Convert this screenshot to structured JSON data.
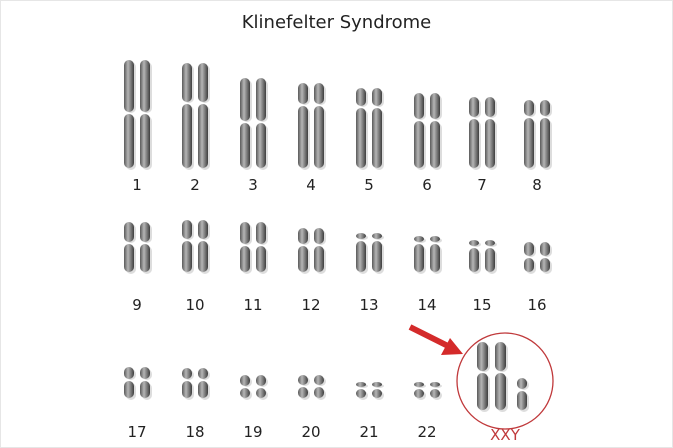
{
  "title": "Klinefelter Syndrome",
  "chromosomes": [
    "1",
    "2",
    "3",
    "4",
    "5",
    "6",
    "7",
    "8",
    "9",
    "10",
    "11",
    "12",
    "13",
    "14",
    "15",
    "16",
    "17",
    "18",
    "19",
    "20",
    "21",
    "22"
  ],
  "sex_chromosomes": {
    "label": "XXY",
    "highlight_color": "#c0393b"
  },
  "colors": {
    "chromosome": "#8a8a8a",
    "label": "#222222",
    "arrow": "#d42a2a"
  }
}
